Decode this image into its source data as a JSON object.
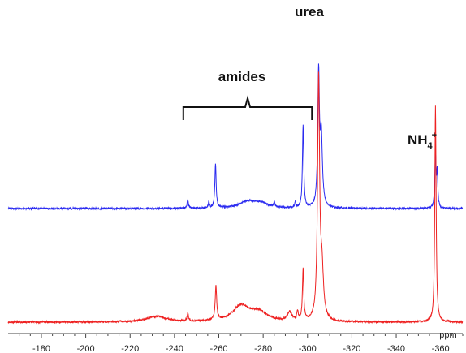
{
  "chart_data": {
    "type": "line",
    "title": "",
    "xlabel": "",
    "ylabel": "",
    "x_unit_label": "ppm",
    "x_reversed": true,
    "xlim": [
      -165,
      -370
    ],
    "x_ticks": [
      -180,
      -200,
      -220,
      -240,
      -260,
      -280,
      -300,
      -320,
      -340,
      -360
    ],
    "x_tick_labels": [
      "-180",
      "-200",
      "-220",
      "-240",
      "-260",
      "-280",
      "-300",
      "-320",
      "-340",
      "-360"
    ],
    "colors": {
      "top": "#2b2bf0",
      "bottom": "#ee2222",
      "text": "#111111"
    },
    "series": [
      {
        "color": "#2b2bf0",
        "baseline_intensity": 0,
        "peaks": [
          {
            "x": -246,
            "height": 0.06,
            "width": 0.35
          },
          {
            "x": -255.5,
            "height": 0.04,
            "width": 0.3
          },
          {
            "x": -258.5,
            "height": 0.29,
            "width": 0.35
          },
          {
            "x": -273,
            "height": 0.045,
            "width": 4.5
          },
          {
            "x": -279,
            "height": 0.03,
            "width": 3.5
          },
          {
            "x": -285,
            "height": 0.03,
            "width": 0.35
          },
          {
            "x": -294.5,
            "height": 0.04,
            "width": 0.3
          },
          {
            "x": -298,
            "height": 0.53,
            "width": 0.35
          },
          {
            "x": -305,
            "height": 0.85,
            "width": 0.45
          },
          {
            "x": -306.2,
            "height": 0.45,
            "width": 0.6
          },
          {
            "x": -357.7,
            "height": 0.33,
            "width": 0.35
          },
          {
            "x": -358.5,
            "height": 0.22,
            "width": 0.3
          }
        ]
      },
      {
        "color": "#ee2222",
        "baseline_intensity": 0,
        "peaks": [
          {
            "x": -232,
            "height": 0.035,
            "width": 5.5
          },
          {
            "x": -246,
            "height": 0.05,
            "width": 0.35
          },
          {
            "x": -258.7,
            "height": 0.22,
            "width": 0.4
          },
          {
            "x": -270,
            "height": 0.1,
            "width": 4.5
          },
          {
            "x": -278,
            "height": 0.06,
            "width": 4.5
          },
          {
            "x": -292,
            "height": 0.055,
            "width": 1.2
          },
          {
            "x": -295.5,
            "height": 0.06,
            "width": 0.35
          },
          {
            "x": -298,
            "height": 0.33,
            "width": 0.35
          },
          {
            "x": -305,
            "height": 1.55,
            "width": 0.55
          },
          {
            "x": -306.5,
            "height": 0.3,
            "width": 0.8
          },
          {
            "x": -357.7,
            "height": 1.4,
            "width": 0.35
          }
        ]
      }
    ],
    "annotations": [
      {
        "text": "urea"
      },
      {
        "text": "amides",
        "range": [
          -244,
          -302
        ]
      },
      {
        "text": "NH",
        "subscript": "4",
        "superscript": "+"
      }
    ]
  }
}
